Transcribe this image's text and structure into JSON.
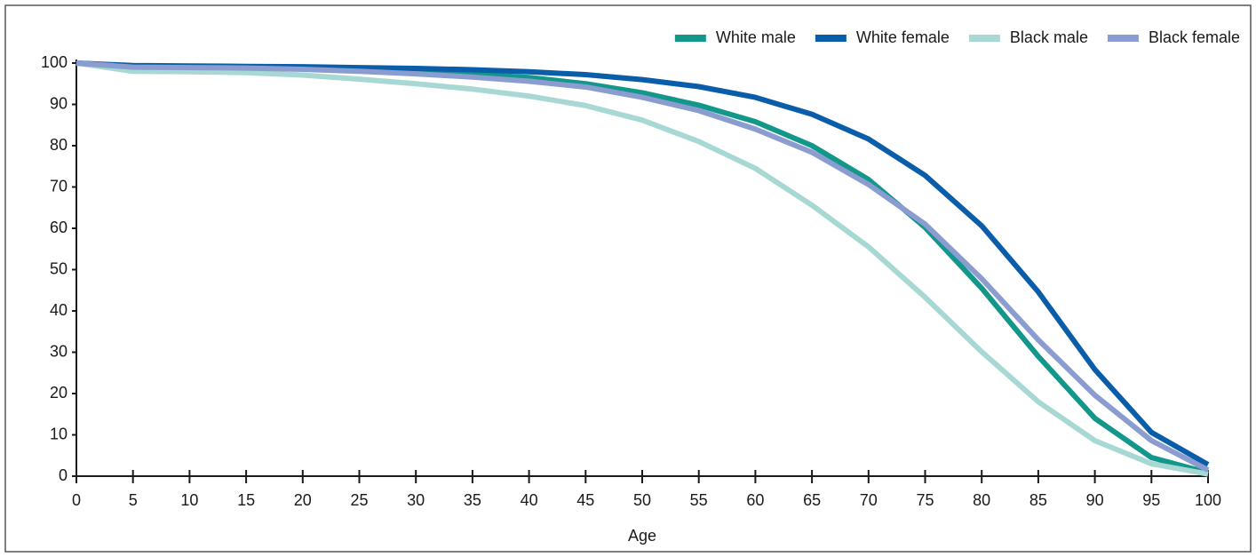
{
  "chart_data": {
    "type": "line",
    "x_label": "Age",
    "x": [
      0,
      5,
      10,
      15,
      20,
      25,
      30,
      35,
      40,
      45,
      50,
      55,
      60,
      65,
      70,
      75,
      80,
      85,
      90,
      95,
      100
    ],
    "series": [
      {
        "name": "White male",
        "color": "#13978a",
        "values": [
          100,
          99.2,
          99.1,
          99.0,
          98.6,
          98.2,
          97.8,
          97.3,
          96.5,
          95.0,
          92.8,
          89.8,
          85.8,
          80.0,
          71.8,
          60.2,
          45.5,
          29.0,
          14.0,
          4.5,
          0.8
        ]
      },
      {
        "name": "White female",
        "color": "#0a5da8",
        "values": [
          100,
          99.4,
          99.3,
          99.2,
          99.1,
          98.9,
          98.7,
          98.4,
          97.9,
          97.2,
          96.0,
          94.3,
          91.7,
          87.6,
          81.6,
          72.8,
          60.6,
          44.6,
          25.8,
          10.6,
          2.8
        ]
      },
      {
        "name": "Black male",
        "color": "#a8d8d4",
        "values": [
          100,
          98.0,
          97.9,
          97.7,
          97.1,
          96.1,
          95.0,
          93.7,
          92.0,
          89.7,
          86.2,
          81.0,
          74.5,
          65.6,
          55.5,
          43.3,
          30.1,
          18.0,
          8.6,
          3.0,
          0.5
        ]
      },
      {
        "name": "Black female",
        "color": "#8b9dd0",
        "values": [
          100,
          99.0,
          98.9,
          98.8,
          98.5,
          98.0,
          97.4,
          96.6,
          95.6,
          94.2,
          91.7,
          88.5,
          84.0,
          78.4,
          70.6,
          61.0,
          47.8,
          33.0,
          19.6,
          8.6,
          1.5
        ]
      }
    ],
    "xlim": [
      0,
      100
    ],
    "xticks": [
      0,
      5,
      10,
      15,
      20,
      25,
      30,
      35,
      40,
      45,
      50,
      55,
      60,
      65,
      70,
      75,
      80,
      85,
      90,
      95,
      100
    ],
    "ylim": [
      0,
      100
    ],
    "yticks": [
      0,
      10,
      20,
      30,
      40,
      50,
      60,
      70,
      80,
      90,
      100
    ],
    "legend": "top-right"
  }
}
